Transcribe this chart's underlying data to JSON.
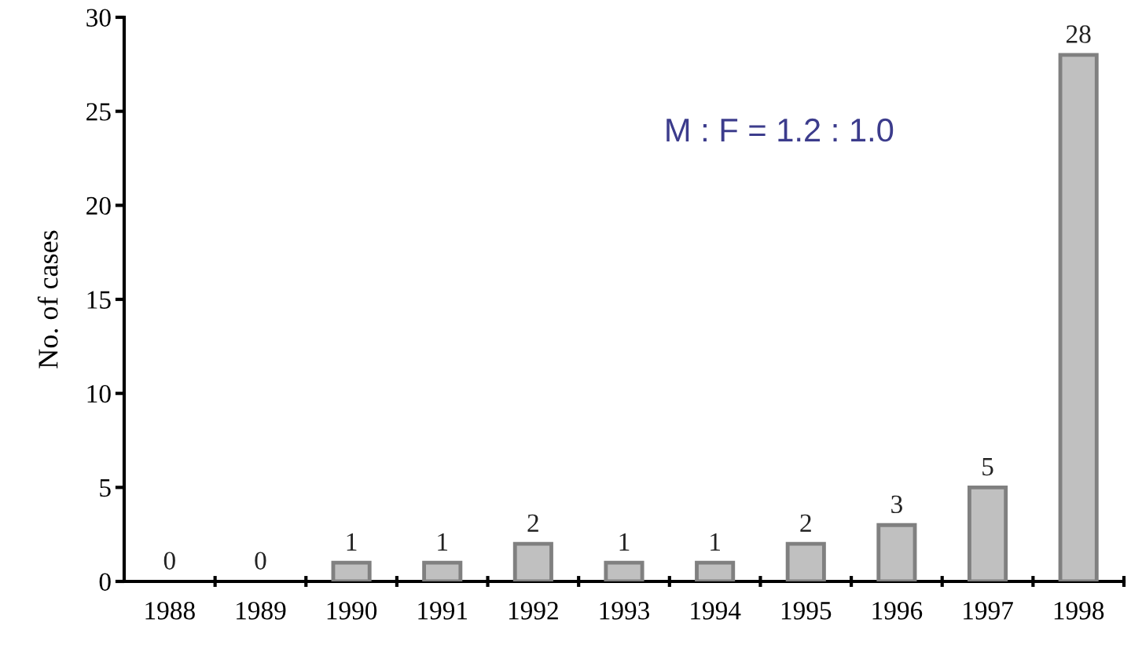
{
  "chart_data": {
    "type": "bar",
    "ylabel": "No. of cases",
    "categories": [
      "1988",
      "1989",
      "1990",
      "1991",
      "1992",
      "1993",
      "1994",
      "1995",
      "1996",
      "1997",
      "1998"
    ],
    "values": [
      0,
      0,
      1,
      1,
      2,
      1,
      1,
      2,
      3,
      5,
      28
    ],
    "color": "#c0c0c0",
    "ylim": [
      0,
      30
    ],
    "yticks": [
      0,
      5,
      10,
      15,
      20,
      25,
      30
    ],
    "data_labels": true,
    "grid": false,
    "legend": false,
    "annotations": [
      "M : F = 1.2 : 1.0"
    ]
  }
}
